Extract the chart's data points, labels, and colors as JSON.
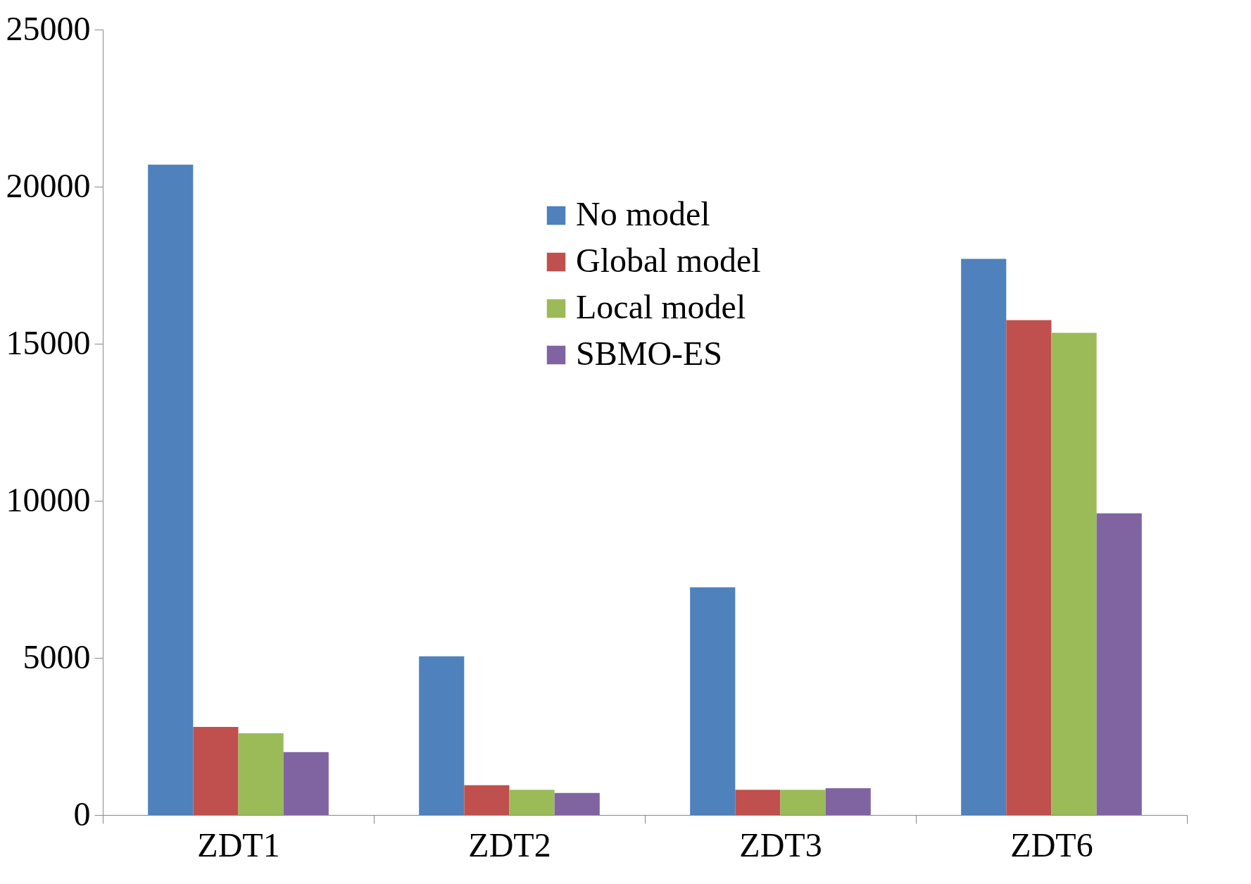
{
  "chart_data": {
    "type": "bar",
    "categories": [
      "ZDT1",
      "ZDT2",
      "ZDT3",
      "ZDT6"
    ],
    "series": [
      {
        "name": "No model",
        "color": "#4f81bd",
        "values": [
          20700,
          5050,
          7250,
          17700
        ]
      },
      {
        "name": "Global model",
        "color": "#c0504d",
        "values": [
          2800,
          950,
          800,
          15750
        ]
      },
      {
        "name": "Local model",
        "color": "#9bbb59",
        "values": [
          2600,
          800,
          800,
          15350
        ]
      },
      {
        "name": "SBMO-ES",
        "color": "#8064a2",
        "values": [
          2000,
          700,
          850,
          9600
        ]
      }
    ],
    "ylim": [
      0,
      25000
    ],
    "yticks": [
      0,
      5000,
      10000,
      15000,
      20000,
      25000
    ],
    "grid": false,
    "legend": "top"
  }
}
